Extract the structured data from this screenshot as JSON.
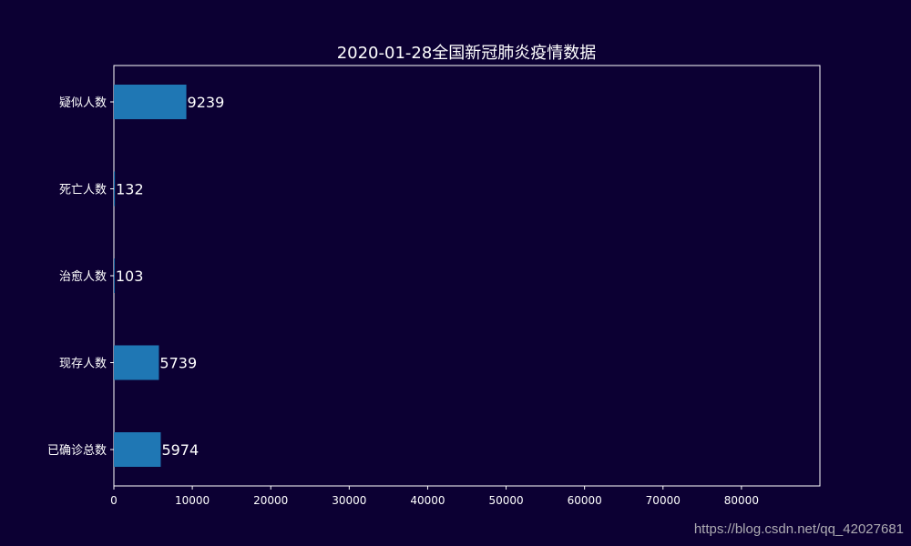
{
  "chart_data": {
    "type": "bar",
    "orientation": "horizontal",
    "title": "2020-01-28全国新冠肺炎疫情数据",
    "categories": [
      "疑似人数",
      "死亡人数",
      "治愈人数",
      "现存人数",
      "已确诊总数"
    ],
    "values": [
      9239,
      132,
      103,
      5739,
      5974
    ],
    "xlim": [
      0,
      90000
    ],
    "xticks": [
      0,
      10000,
      20000,
      30000,
      40000,
      50000,
      60000,
      70000,
      80000
    ],
    "xlabel": "",
    "ylabel": "",
    "grid": false,
    "bar_color": "#1f77b4",
    "background_color": "#0c0033",
    "text_color": "#ffffff"
  },
  "watermark": "https://blog.csdn.net/qq_42027681"
}
